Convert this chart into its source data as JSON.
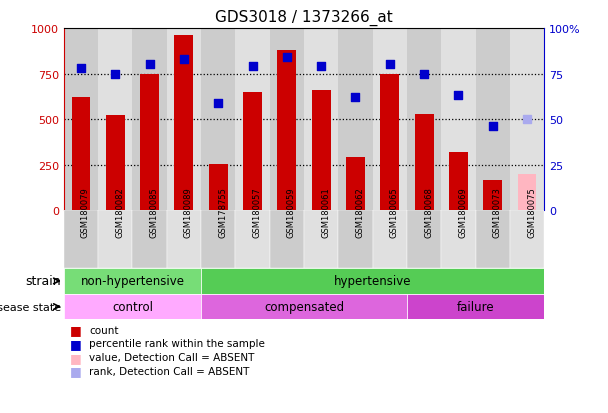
{
  "title": "GDS3018 / 1373266_at",
  "samples": [
    "GSM180079",
    "GSM180082",
    "GSM180085",
    "GSM180089",
    "GSM178755",
    "GSM180057",
    "GSM180059",
    "GSM180061",
    "GSM180062",
    "GSM180065",
    "GSM180068",
    "GSM180069",
    "GSM180073",
    "GSM180075"
  ],
  "bar_values": [
    620,
    525,
    750,
    960,
    255,
    650,
    880,
    660,
    290,
    750,
    530,
    320,
    165,
    200
  ],
  "bar_colors": [
    "#cc0000",
    "#cc0000",
    "#cc0000",
    "#cc0000",
    "#cc0000",
    "#cc0000",
    "#cc0000",
    "#cc0000",
    "#cc0000",
    "#cc0000",
    "#cc0000",
    "#cc0000",
    "#cc0000",
    "#ffb6c1"
  ],
  "scatter_values": [
    780,
    750,
    800,
    830,
    590,
    790,
    840,
    790,
    620,
    800,
    750,
    630,
    460,
    500
  ],
  "scatter_colors": [
    "#0000cc",
    "#0000cc",
    "#0000cc",
    "#0000cc",
    "#0000cc",
    "#0000cc",
    "#0000cc",
    "#0000cc",
    "#0000cc",
    "#0000cc",
    "#0000cc",
    "#0000cc",
    "#0000cc",
    "#aaaaee"
  ],
  "ylim_left": [
    0,
    1000
  ],
  "ylim_right": [
    0,
    100
  ],
  "yticks_left": [
    0,
    250,
    500,
    750,
    1000
  ],
  "yticks_right": [
    0,
    25,
    50,
    75,
    100
  ],
  "strain_groups": [
    {
      "label": "non-hypertensive",
      "start": 0,
      "end": 4,
      "color": "#77dd77"
    },
    {
      "label": "hypertensive",
      "start": 4,
      "end": 14,
      "color": "#55cc55"
    }
  ],
  "disease_groups": [
    {
      "label": "control",
      "start": 0,
      "end": 4,
      "color": "#ffaaff"
    },
    {
      "label": "compensated",
      "start": 4,
      "end": 10,
      "color": "#dd66dd"
    },
    {
      "label": "failure",
      "start": 10,
      "end": 14,
      "color": "#cc44cc"
    }
  ],
  "strain_label": "strain",
  "disease_label": "disease state",
  "legend_items": [
    {
      "color": "#cc0000",
      "label": "count"
    },
    {
      "color": "#0000cc",
      "label": "percentile rank within the sample"
    },
    {
      "color": "#ffb6c1",
      "label": "value, Detection Call = ABSENT"
    },
    {
      "color": "#aaaaee",
      "label": "rank, Detection Call = ABSENT"
    }
  ],
  "left_axis_color": "#cc0000",
  "right_axis_color": "#0000cc",
  "background_color": "#ffffff",
  "plot_bg_color": "#d8d8d8",
  "col_bg_even": "#cccccc",
  "col_bg_odd": "#e0e0e0"
}
